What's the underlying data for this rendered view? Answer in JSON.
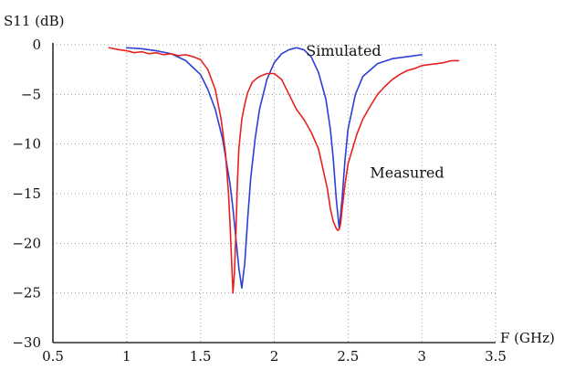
{
  "chart_data": {
    "type": "line",
    "title": "",
    "ylabel": "S11 (dB)",
    "xlabel": "F (GHz)",
    "xlim": [
      0.5,
      3.5
    ],
    "ylim": [
      -30,
      0
    ],
    "xticks": [
      0.5,
      1,
      1.5,
      2,
      2.5,
      3,
      3.5
    ],
    "xtick_labels": [
      "0.5",
      "1",
      "1.5",
      "2",
      "2.5",
      "3",
      "3.5"
    ],
    "yticks": [
      0,
      -5,
      -10,
      -15,
      -20,
      -25,
      -30
    ],
    "ytick_labels": [
      "0",
      "−5",
      "−10",
      "−15",
      "−20",
      "−25",
      "−30"
    ],
    "grid": true,
    "series": [
      {
        "name": "Simulated",
        "color": "#2a3fd6",
        "x": [
          1.0,
          1.1,
          1.2,
          1.3,
          1.4,
          1.5,
          1.55,
          1.6,
          1.65,
          1.7,
          1.72,
          1.74,
          1.76,
          1.78,
          1.8,
          1.82,
          1.84,
          1.87,
          1.9,
          1.95,
          2.0,
          2.05,
          2.1,
          2.15,
          2.2,
          2.25,
          2.3,
          2.35,
          2.38,
          2.4,
          2.42,
          2.44,
          2.46,
          2.48,
          2.5,
          2.55,
          2.6,
          2.7,
          2.8,
          2.9,
          3.0
        ],
        "y": [
          -0.3,
          -0.4,
          -0.6,
          -0.9,
          -1.6,
          -3.0,
          -4.5,
          -6.5,
          -9.5,
          -14.0,
          -16.5,
          -19.5,
          -22.5,
          -24.5,
          -22.0,
          -17.5,
          -13.5,
          -9.5,
          -6.5,
          -3.5,
          -1.8,
          -0.9,
          -0.5,
          -0.3,
          -0.5,
          -1.2,
          -2.8,
          -5.5,
          -8.5,
          -11.5,
          -15.5,
          -18.5,
          -15.5,
          -11.5,
          -8.5,
          -5.0,
          -3.2,
          -1.9,
          -1.4,
          -1.2,
          -1.0
        ]
      },
      {
        "name": "Measured",
        "color": "#e82020",
        "x": [
          0.88,
          0.95,
          1.0,
          1.05,
          1.1,
          1.15,
          1.2,
          1.25,
          1.3,
          1.35,
          1.4,
          1.45,
          1.5,
          1.55,
          1.6,
          1.64,
          1.67,
          1.69,
          1.7,
          1.71,
          1.72,
          1.73,
          1.74,
          1.75,
          1.76,
          1.78,
          1.8,
          1.82,
          1.85,
          1.88,
          1.9,
          1.95,
          2.0,
          2.05,
          2.1,
          2.15,
          2.2,
          2.25,
          2.3,
          2.33,
          2.36,
          2.38,
          2.4,
          2.42,
          2.43,
          2.44,
          2.45,
          2.46,
          2.48,
          2.5,
          2.53,
          2.56,
          2.6,
          2.65,
          2.7,
          2.75,
          2.8,
          2.85,
          2.9,
          2.95,
          3.0,
          3.05,
          3.1,
          3.15,
          3.2,
          3.25
        ],
        "y": [
          -0.3,
          -0.5,
          -0.6,
          -0.8,
          -0.7,
          -0.9,
          -0.8,
          -1.0,
          -0.9,
          -1.1,
          -1.0,
          -1.2,
          -1.5,
          -2.5,
          -4.5,
          -7.5,
          -11.0,
          -15.0,
          -18.0,
          -21.5,
          -25.0,
          -23.0,
          -19.0,
          -14.0,
          -10.5,
          -7.5,
          -6.0,
          -4.8,
          -3.8,
          -3.4,
          -3.2,
          -2.9,
          -2.9,
          -3.5,
          -5.0,
          -6.5,
          -7.5,
          -8.8,
          -10.5,
          -12.5,
          -14.5,
          -16.5,
          -17.8,
          -18.5,
          -18.7,
          -18.6,
          -18.0,
          -16.5,
          -14.0,
          -12.0,
          -10.5,
          -9.0,
          -7.5,
          -6.2,
          -5.0,
          -4.2,
          -3.5,
          -3.0,
          -2.6,
          -2.4,
          -2.1,
          -2.0,
          -1.9,
          -1.8,
          -1.6,
          -1.6
        ]
      }
    ],
    "annotations": [
      {
        "text": "Simulated",
        "x": 2.47,
        "y": -1.1
      },
      {
        "text": "Measured",
        "x": 2.9,
        "y": -13.4
      }
    ]
  }
}
